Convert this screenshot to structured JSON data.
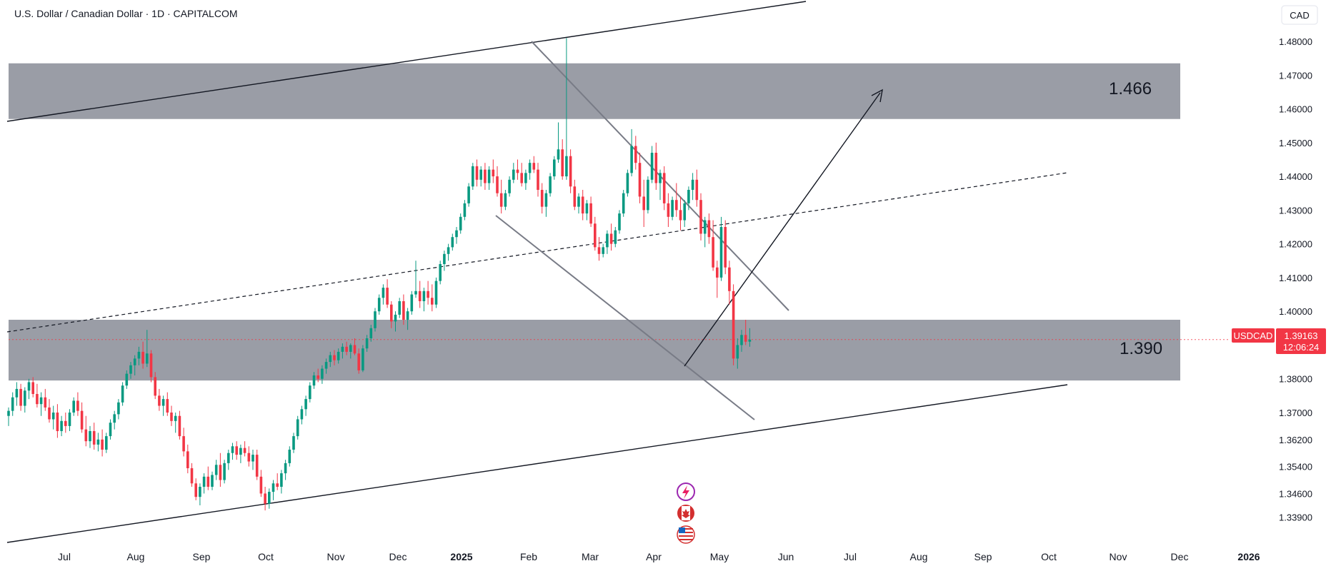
{
  "chart_data": {
    "type": "candlestick",
    "title": "U.S. Dollar / Canadian Dollar · 1D · CAPITALCOM",
    "currency": "CAD",
    "y_ticks": [
      "1.48000",
      "1.47000",
      "1.46000",
      "1.45000",
      "1.44000",
      "1.43000",
      "1.42000",
      "1.41000",
      "1.40000",
      "1.39000",
      "1.38000",
      "1.37000",
      "1.36200",
      "1.35400",
      "1.34600",
      "1.33900"
    ],
    "x_ticks": [
      {
        "label": "Jul",
        "bold": false
      },
      {
        "label": "Aug",
        "bold": false
      },
      {
        "label": "Sep",
        "bold": false
      },
      {
        "label": "Oct",
        "bold": false
      },
      {
        "label": "Nov",
        "bold": false
      },
      {
        "label": "Dec",
        "bold": false
      },
      {
        "label": "2025",
        "bold": true
      },
      {
        "label": "Feb",
        "bold": false
      },
      {
        "label": "Mar",
        "bold": false
      },
      {
        "label": "Apr",
        "bold": false
      },
      {
        "label": "May",
        "bold": false
      },
      {
        "label": "Jun",
        "bold": false
      },
      {
        "label": "Jul",
        "bold": false
      },
      {
        "label": "Aug",
        "bold": false
      },
      {
        "label": "Sep",
        "bold": false
      },
      {
        "label": "Oct",
        "bold": false
      },
      {
        "label": "Nov",
        "bold": false
      },
      {
        "label": "Dec",
        "bold": false
      },
      {
        "label": "2026",
        "bold": true
      }
    ],
    "zones": [
      {
        "label": "1.466",
        "top": 1.4735,
        "bottom": 1.457
      },
      {
        "label": "1.390",
        "top": 1.3975,
        "bottom": 1.3795
      }
    ],
    "current_price": {
      "symbol": "USDCAD",
      "price": "1.39163",
      "countdown": "12:06:24",
      "value": 1.39163
    },
    "colors": {
      "up": "#089981",
      "down": "#f23645",
      "zone": "#9598a1",
      "text": "#131722",
      "grid": "#e0e3eb"
    },
    "event_icons": [
      "lightning-icon",
      "canada-flag-icon",
      "us-flag-icon"
    ],
    "candles": [
      [
        1.369,
        1.3715,
        1.366,
        1.3705
      ],
      [
        1.3705,
        1.376,
        1.369,
        1.3745
      ],
      [
        1.3745,
        1.379,
        1.372,
        1.377
      ],
      [
        1.377,
        1.3785,
        1.3705,
        1.372
      ],
      [
        1.372,
        1.3775,
        1.37,
        1.3765
      ],
      [
        1.3765,
        1.38,
        1.374,
        1.379
      ],
      [
        1.379,
        1.3805,
        1.3745,
        1.3755
      ],
      [
        1.3755,
        1.3785,
        1.3715,
        1.3725
      ],
      [
        1.3725,
        1.376,
        1.369,
        1.3745
      ],
      [
        1.3745,
        1.377,
        1.3705,
        1.3715
      ],
      [
        1.3715,
        1.374,
        1.367,
        1.368
      ],
      [
        1.368,
        1.372,
        1.365,
        1.37
      ],
      [
        1.37,
        1.3725,
        1.3625,
        1.3645
      ],
      [
        1.3645,
        1.369,
        1.363,
        1.3675
      ],
      [
        1.3675,
        1.37,
        1.364,
        1.366
      ],
      [
        1.366,
        1.371,
        1.3645,
        1.37
      ],
      [
        1.37,
        1.3745,
        1.369,
        1.3735
      ],
      [
        1.3735,
        1.376,
        1.369,
        1.3705
      ],
      [
        1.3705,
        1.373,
        1.364,
        1.365
      ],
      [
        1.365,
        1.369,
        1.36,
        1.3615
      ],
      [
        1.3615,
        1.366,
        1.3595,
        1.3645
      ],
      [
        1.3645,
        1.367,
        1.359,
        1.3605
      ],
      [
        1.3605,
        1.364,
        1.3585,
        1.362
      ],
      [
        1.362,
        1.365,
        1.357,
        1.359
      ],
      [
        1.359,
        1.364,
        1.358,
        1.363
      ],
      [
        1.363,
        1.368,
        1.362,
        1.367
      ],
      [
        1.367,
        1.3705,
        1.365,
        1.3695
      ],
      [
        1.3695,
        1.374,
        1.368,
        1.373
      ],
      [
        1.373,
        1.379,
        1.372,
        1.378
      ],
      [
        1.378,
        1.3825,
        1.377,
        1.3815
      ],
      [
        1.3815,
        1.385,
        1.38,
        1.384
      ],
      [
        1.384,
        1.387,
        1.381,
        1.386
      ],
      [
        1.386,
        1.3895,
        1.384,
        1.388
      ],
      [
        1.388,
        1.391,
        1.383,
        1.3845
      ],
      [
        1.3845,
        1.3945,
        1.3835,
        1.3875
      ],
      [
        1.3875,
        1.3885,
        1.379,
        1.3805
      ],
      [
        1.3805,
        1.382,
        1.374,
        1.375
      ],
      [
        1.375,
        1.377,
        1.3705,
        1.372
      ],
      [
        1.372,
        1.375,
        1.369,
        1.374
      ],
      [
        1.374,
        1.376,
        1.369,
        1.37
      ],
      [
        1.37,
        1.372,
        1.366,
        1.3675
      ],
      [
        1.3675,
        1.37,
        1.364,
        1.369
      ],
      [
        1.369,
        1.3705,
        1.362,
        1.363
      ],
      [
        1.363,
        1.3655,
        1.357,
        1.3585
      ],
      [
        1.3585,
        1.3605,
        1.352,
        1.3535
      ],
      [
        1.3535,
        1.355,
        1.348,
        1.349
      ],
      [
        1.349,
        1.3505,
        1.344,
        1.345
      ],
      [
        1.345,
        1.349,
        1.3425,
        1.348
      ],
      [
        1.348,
        1.352,
        1.346,
        1.351
      ],
      [
        1.351,
        1.354,
        1.347,
        1.348
      ],
      [
        1.348,
        1.3525,
        1.347,
        1.3515
      ],
      [
        1.3515,
        1.356,
        1.35,
        1.3545
      ],
      [
        1.3545,
        1.358,
        1.348,
        1.35
      ],
      [
        1.35,
        1.356,
        1.349,
        1.355
      ],
      [
        1.355,
        1.359,
        1.353,
        1.358
      ],
      [
        1.358,
        1.361,
        1.356,
        1.36
      ],
      [
        1.36,
        1.3615,
        1.356,
        1.3575
      ],
      [
        1.3575,
        1.3605,
        1.355,
        1.3595
      ],
      [
        1.3595,
        1.3615,
        1.357,
        1.358
      ],
      [
        1.358,
        1.36,
        1.354,
        1.3555
      ],
      [
        1.3555,
        1.359,
        1.353,
        1.3575
      ],
      [
        1.3575,
        1.359,
        1.35,
        1.351
      ],
      [
        1.351,
        1.353,
        1.345,
        1.346
      ],
      [
        1.346,
        1.348,
        1.341,
        1.343
      ],
      [
        1.343,
        1.3475,
        1.3415,
        1.3465
      ],
      [
        1.3465,
        1.35,
        1.344,
        1.349
      ],
      [
        1.349,
        1.352,
        1.347,
        1.348
      ],
      [
        1.348,
        1.353,
        1.346,
        1.352
      ],
      [
        1.352,
        1.356,
        1.35,
        1.355
      ],
      [
        1.355,
        1.36,
        1.354,
        1.359
      ],
      [
        1.359,
        1.364,
        1.358,
        1.363
      ],
      [
        1.363,
        1.369,
        1.362,
        1.368
      ],
      [
        1.368,
        1.372,
        1.3665,
        1.371
      ],
      [
        1.371,
        1.375,
        1.369,
        1.374
      ],
      [
        1.374,
        1.379,
        1.373,
        1.378
      ],
      [
        1.378,
        1.382,
        1.377,
        1.381
      ],
      [
        1.381,
        1.383,
        1.379,
        1.38
      ],
      [
        1.38,
        1.384,
        1.3785,
        1.383
      ],
      [
        1.383,
        1.386,
        1.3815,
        1.385
      ],
      [
        1.385,
        1.388,
        1.3835,
        1.387
      ],
      [
        1.387,
        1.3885,
        1.384,
        1.3855
      ],
      [
        1.3855,
        1.389,
        1.3845,
        1.388
      ],
      [
        1.388,
        1.3905,
        1.386,
        1.3895
      ],
      [
        1.3895,
        1.391,
        1.387,
        1.388
      ],
      [
        1.388,
        1.3905,
        1.386,
        1.39
      ],
      [
        1.39,
        1.392,
        1.387,
        1.3875
      ],
      [
        1.3875,
        1.389,
        1.3815,
        1.3825
      ],
      [
        1.3825,
        1.39,
        1.382,
        1.389
      ],
      [
        1.389,
        1.393,
        1.388,
        1.392
      ],
      [
        1.392,
        1.396,
        1.391,
        1.395
      ],
      [
        1.395,
        1.401,
        1.394,
        1.4
      ],
      [
        1.4,
        1.405,
        1.399,
        1.404
      ],
      [
        1.404,
        1.408,
        1.402,
        1.407
      ],
      [
        1.407,
        1.4095,
        1.401,
        1.402
      ],
      [
        1.402,
        1.403,
        1.395,
        1.397
      ],
      [
        1.397,
        1.4,
        1.394,
        1.399
      ],
      [
        1.399,
        1.404,
        1.398,
        1.403
      ],
      [
        1.403,
        1.405,
        1.396,
        1.3975
      ],
      [
        1.3975,
        1.401,
        1.3945,
        1.4
      ],
      [
        1.4,
        1.406,
        1.399,
        1.405
      ],
      [
        1.405,
        1.415,
        1.404,
        1.406
      ],
      [
        1.406,
        1.409,
        1.401,
        1.403
      ],
      [
        1.403,
        1.407,
        1.4,
        1.406
      ],
      [
        1.406,
        1.409,
        1.402,
        1.404
      ],
      [
        1.404,
        1.408,
        1.4,
        1.402
      ],
      [
        1.402,
        1.41,
        1.401,
        1.409
      ],
      [
        1.409,
        1.415,
        1.408,
        1.414
      ],
      [
        1.414,
        1.418,
        1.412,
        1.417
      ],
      [
        1.417,
        1.42,
        1.415,
        1.419
      ],
      [
        1.419,
        1.423,
        1.418,
        1.422
      ],
      [
        1.422,
        1.425,
        1.42,
        1.424
      ],
      [
        1.424,
        1.429,
        1.423,
        1.428
      ],
      [
        1.428,
        1.433,
        1.427,
        1.432
      ],
      [
        1.432,
        1.438,
        1.431,
        1.437
      ],
      [
        1.437,
        1.444,
        1.436,
        1.443
      ],
      [
        1.443,
        1.445,
        1.437,
        1.439
      ],
      [
        1.439,
        1.443,
        1.437,
        1.442
      ],
      [
        1.442,
        1.444,
        1.436,
        1.438
      ],
      [
        1.438,
        1.443,
        1.436,
        1.442
      ],
      [
        1.442,
        1.445,
        1.438,
        1.44
      ],
      [
        1.44,
        1.443,
        1.434,
        1.435
      ],
      [
        1.435,
        1.439,
        1.429,
        1.431
      ],
      [
        1.431,
        1.436,
        1.43,
        1.435
      ],
      [
        1.435,
        1.44,
        1.434,
        1.439
      ],
      [
        1.439,
        1.444,
        1.438,
        1.442
      ],
      [
        1.442,
        1.445,
        1.439,
        1.441
      ],
      [
        1.441,
        1.444,
        1.437,
        1.438
      ],
      [
        1.438,
        1.442,
        1.436,
        1.441
      ],
      [
        1.441,
        1.445,
        1.439,
        1.444
      ],
      [
        1.444,
        1.446,
        1.441,
        1.442
      ],
      [
        1.442,
        1.444,
        1.434,
        1.436
      ],
      [
        1.436,
        1.438,
        1.429,
        1.431
      ],
      [
        1.431,
        1.436,
        1.428,
        1.435
      ],
      [
        1.435,
        1.441,
        1.434,
        1.44
      ],
      [
        1.44,
        1.446,
        1.439,
        1.445
      ],
      [
        1.445,
        1.456,
        1.444,
        1.448
      ],
      [
        1.448,
        1.451,
        1.439,
        1.44
      ],
      [
        1.44,
        1.481,
        1.439,
        1.446
      ],
      [
        1.446,
        1.448,
        1.435,
        1.437
      ],
      [
        1.437,
        1.439,
        1.43,
        1.431
      ],
      [
        1.431,
        1.435,
        1.429,
        1.434
      ],
      [
        1.434,
        1.436,
        1.427,
        1.429
      ],
      [
        1.429,
        1.433,
        1.427,
        1.432
      ],
      [
        1.432,
        1.434,
        1.425,
        1.426
      ],
      [
        1.426,
        1.428,
        1.418,
        1.419
      ],
      [
        1.419,
        1.422,
        1.415,
        1.417
      ],
      [
        1.417,
        1.42,
        1.416,
        1.419
      ],
      [
        1.419,
        1.424,
        1.417,
        1.423
      ],
      [
        1.423,
        1.426,
        1.418,
        1.42
      ],
      [
        1.42,
        1.425,
        1.419,
        1.424
      ],
      [
        1.424,
        1.43,
        1.423,
        1.429
      ],
      [
        1.429,
        1.436,
        1.428,
        1.435
      ],
      [
        1.435,
        1.442,
        1.434,
        1.441
      ],
      [
        1.441,
        1.454,
        1.44,
        1.449
      ],
      [
        1.449,
        1.452,
        1.442,
        1.444
      ],
      [
        1.444,
        1.447,
        1.432,
        1.434
      ],
      [
        1.434,
        1.439,
        1.425,
        1.43
      ],
      [
        1.43,
        1.44,
        1.429,
        1.439
      ],
      [
        1.439,
        1.449,
        1.438,
        1.447
      ],
      [
        1.447,
        1.45,
        1.436,
        1.438
      ],
      [
        1.438,
        1.442,
        1.433,
        1.441
      ],
      [
        1.441,
        1.443,
        1.43,
        1.432
      ],
      [
        1.432,
        1.435,
        1.425,
        1.428
      ],
      [
        1.428,
        1.434,
        1.427,
        1.433
      ],
      [
        1.433,
        1.438,
        1.428,
        1.43
      ],
      [
        1.43,
        1.434,
        1.424,
        1.427
      ],
      [
        1.427,
        1.433,
        1.425,
        1.432
      ],
      [
        1.432,
        1.437,
        1.43,
        1.436
      ],
      [
        1.436,
        1.441,
        1.433,
        1.439
      ],
      [
        1.439,
        1.442,
        1.431,
        1.433
      ],
      [
        1.433,
        1.435,
        1.421,
        1.423
      ],
      [
        1.423,
        1.428,
        1.419,
        1.427
      ],
      [
        1.427,
        1.429,
        1.42,
        1.422
      ],
      [
        1.422,
        1.427,
        1.412,
        1.413
      ],
      [
        1.413,
        1.415,
        1.404,
        1.41
      ],
      [
        1.41,
        1.428,
        1.409,
        1.425
      ],
      [
        1.425,
        1.427,
        1.411,
        1.413
      ],
      [
        1.413,
        1.415,
        1.402,
        1.406
      ],
      [
        1.406,
        1.408,
        1.384,
        1.386
      ],
      [
        1.386,
        1.392,
        1.383,
        1.39
      ],
      [
        1.39,
        1.3945,
        1.388,
        1.393
      ],
      [
        1.393,
        1.3975,
        1.39,
        1.391
      ],
      [
        1.391,
        1.395,
        1.3895,
        1.3916
      ]
    ]
  }
}
